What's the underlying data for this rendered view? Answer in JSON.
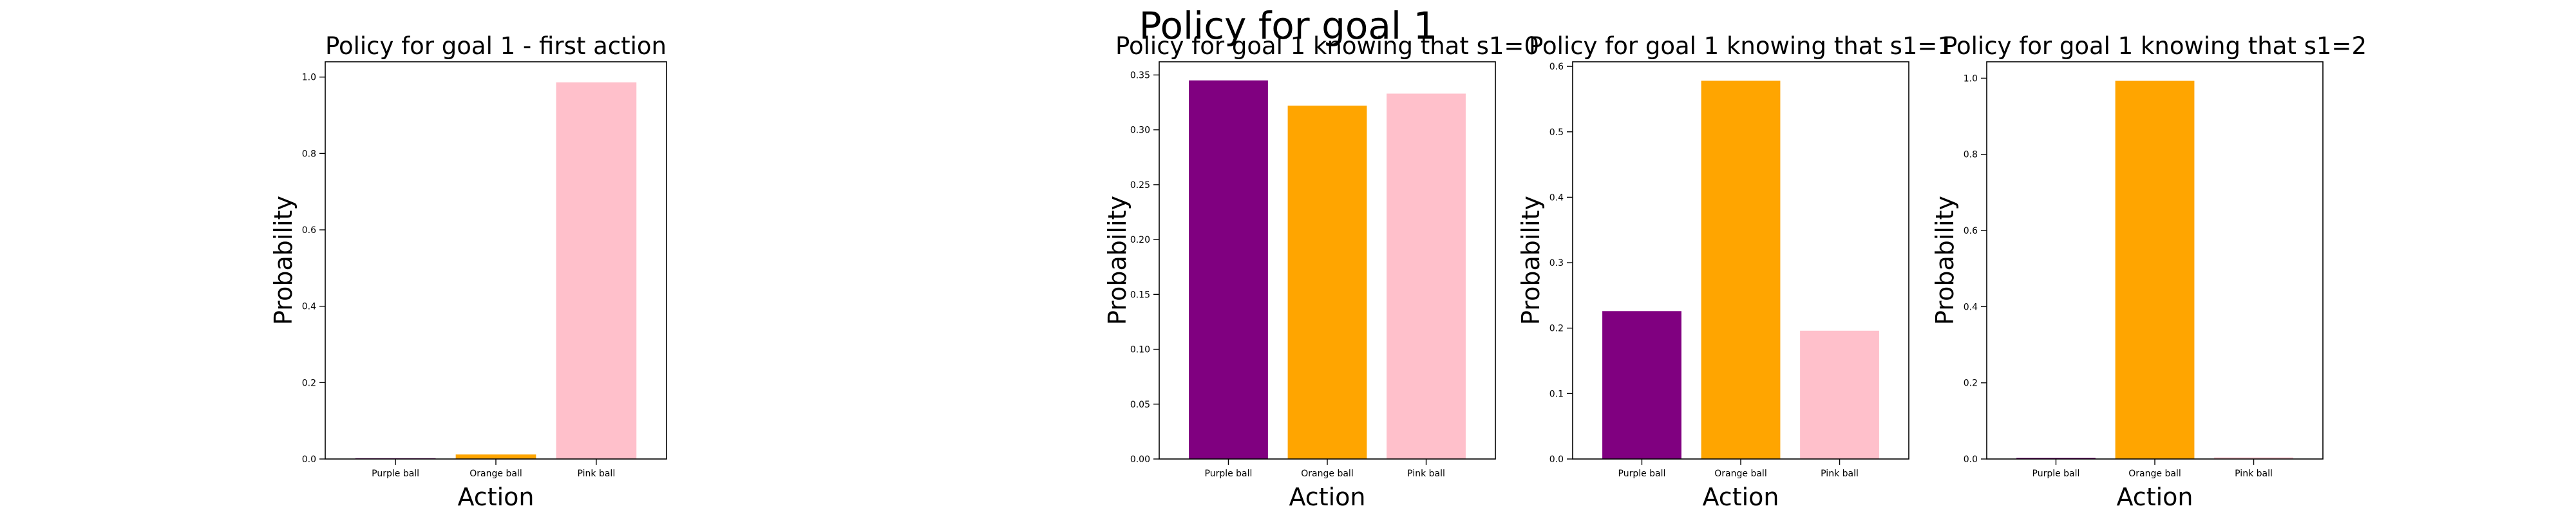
{
  "suptitle": "Policy for goal 1",
  "chart_data": [
    {
      "type": "bar",
      "title": "Policy for goal 1 - first action",
      "xlabel": "Action",
      "ylabel": "Probability",
      "categories": [
        "Purple ball",
        "Orange ball",
        "Pink ball"
      ],
      "values": [
        0.002,
        0.012,
        0.986
      ],
      "colors": [
        "#800080",
        "#FFA500",
        "#FFC0CB"
      ],
      "ylim": [
        0,
        1.04
      ],
      "yticks": [
        0.0,
        0.2,
        0.4,
        0.6,
        0.8,
        1.0
      ],
      "ytick_labels": [
        "0.0",
        "0.2",
        "0.4",
        "0.6",
        "0.8",
        "1.0"
      ],
      "grid": false
    },
    {
      "type": "bar",
      "title": "Policy for goal 1 knowing that s1=0",
      "xlabel": "Action",
      "ylabel": "Probability",
      "categories": [
        "Purple ball",
        "Orange ball",
        "Pink ball"
      ],
      "values": [
        0.345,
        0.322,
        0.333
      ],
      "colors": [
        "#800080",
        "#FFA500",
        "#FFC0CB"
      ],
      "ylim": [
        0,
        0.362
      ],
      "yticks": [
        0.0,
        0.05,
        0.1,
        0.15,
        0.2,
        0.25,
        0.3,
        0.35
      ],
      "ytick_labels": [
        "0.00",
        "0.05",
        "0.10",
        "0.15",
        "0.20",
        "0.25",
        "0.30",
        "0.35"
      ],
      "grid": false
    },
    {
      "type": "bar",
      "title": "Policy for goal 1 knowing that s1=1",
      "xlabel": "Action",
      "ylabel": "Probability",
      "categories": [
        "Purple ball",
        "Orange ball",
        "Pink ball"
      ],
      "values": [
        0.226,
        0.578,
        0.196
      ],
      "colors": [
        "#800080",
        "#FFA500",
        "#FFC0CB"
      ],
      "ylim": [
        0,
        0.607
      ],
      "yticks": [
        0.0,
        0.1,
        0.2,
        0.3,
        0.4,
        0.5,
        0.6
      ],
      "ytick_labels": [
        "0.0",
        "0.1",
        "0.2",
        "0.3",
        "0.4",
        "0.5",
        "0.6"
      ],
      "grid": false
    },
    {
      "type": "bar",
      "title": "Policy for goal 1 knowing that s1=2",
      "xlabel": "Action",
      "ylabel": "Probability",
      "categories": [
        "Purple ball",
        "Orange ball",
        "Pink ball"
      ],
      "values": [
        0.003,
        0.993,
        0.004
      ],
      "colors": [
        "#800080",
        "#FFA500",
        "#FFC0CB"
      ],
      "ylim": [
        0,
        1.043
      ],
      "yticks": [
        0.0,
        0.2,
        0.4,
        0.6,
        0.8,
        1.0
      ],
      "ytick_labels": [
        "0.0",
        "0.2",
        "0.4",
        "0.6",
        "0.8",
        "1.0"
      ],
      "grid": false
    }
  ]
}
